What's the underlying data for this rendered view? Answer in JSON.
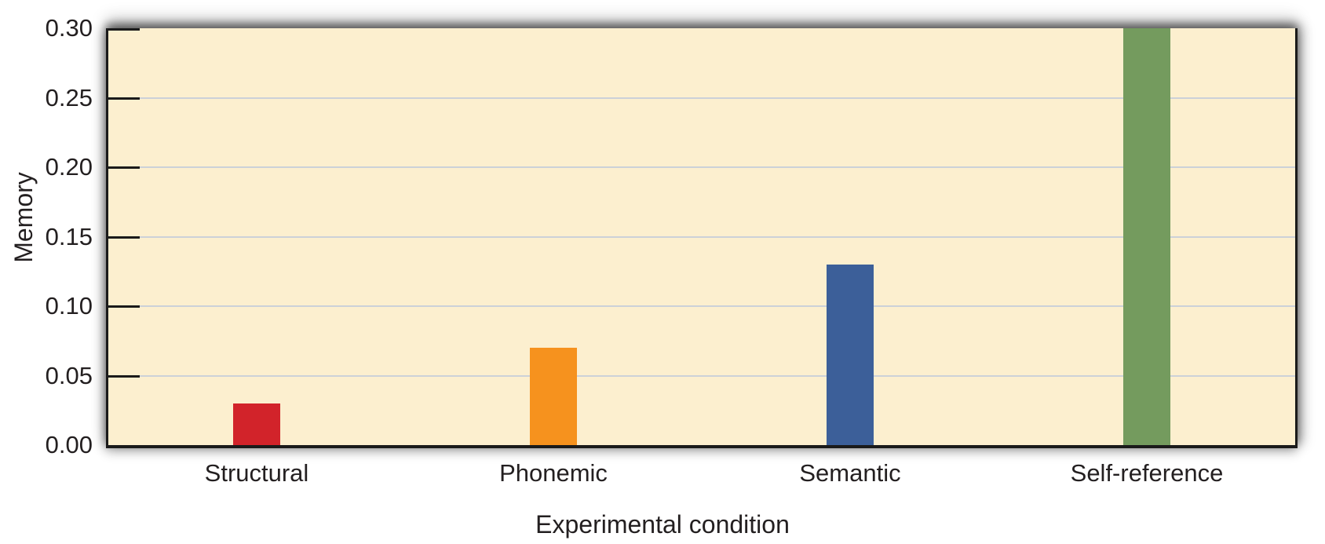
{
  "chart_data": {
    "type": "bar",
    "categories": [
      "Structural",
      "Phonemic",
      "Semantic",
      "Self-reference"
    ],
    "values": [
      0.03,
      0.07,
      0.13,
      0.3
    ],
    "bar_colors": [
      "#d2232a",
      "#f6921e",
      "#3c5f99",
      "#749b5e"
    ],
    "title": "",
    "xlabel": "Experimental condition",
    "ylabel": "Memory",
    "ylim": [
      0,
      0.3
    ],
    "yticks": [
      0.0,
      0.05,
      0.1,
      0.15,
      0.2,
      0.25,
      0.3
    ],
    "ytick_labels": [
      "0.00",
      "0.05",
      "0.10",
      "0.15",
      "0.20",
      "0.25",
      "0.30"
    ],
    "grid": true,
    "legend": "none",
    "plot_background_color": "#fcefcf",
    "gridline_color": "#ccd1d8",
    "axis_color": "#1a1a1a",
    "text_color": "#231f20"
  }
}
